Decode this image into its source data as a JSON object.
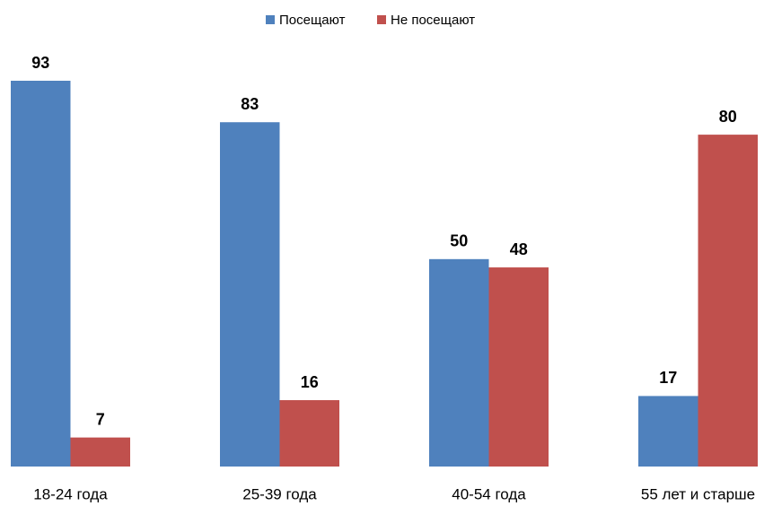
{
  "chart_data": {
    "type": "bar",
    "categories": [
      "18-24 года",
      "25-39 года",
      "40-54 года",
      "55 лет и старше"
    ],
    "series": [
      {
        "name": "Посещают",
        "color": "#4f81bd",
        "values": [
          93,
          83,
          50,
          17
        ]
      },
      {
        "name": "Не посещают",
        "color": "#c0504d",
        "values": [
          7,
          16,
          48,
          80
        ]
      }
    ],
    "legend": "top"
  }
}
